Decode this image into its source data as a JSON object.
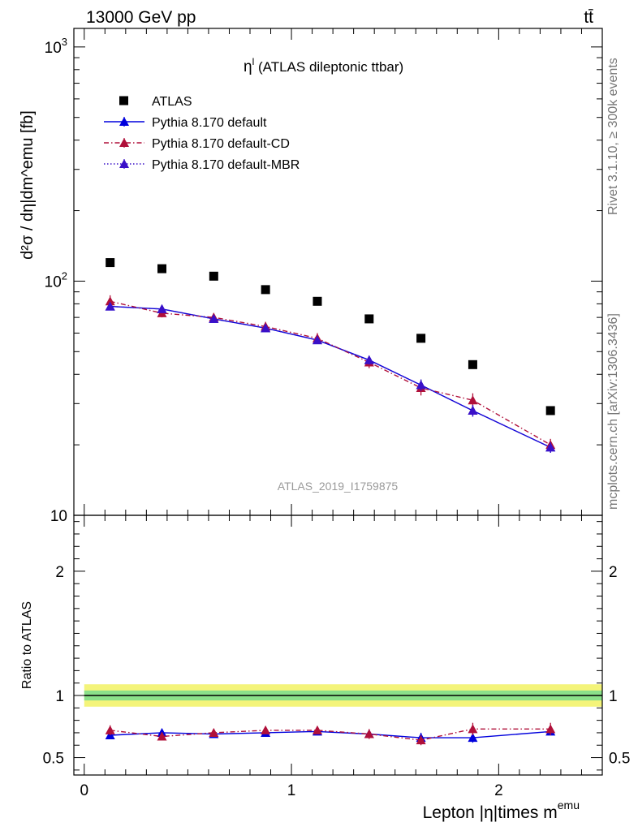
{
  "header": {
    "left": "13000 GeV pp",
    "right": "tt̄"
  },
  "side_labels": {
    "rivet": "Rivet 3.1.10, ≥ 300k events",
    "mcplots": "mcplots.cern.ch [arXiv:1306.3436]"
  },
  "watermark": "ATLAS_2019_I1759875",
  "chart_data": [
    {
      "type": "scatter",
      "panel": "main",
      "title_main": "η",
      "title_sup": "l",
      "title_rest": " (ATLAS dileptonic ttbar)",
      "ylabel": "d²σ / dη|dm^emu [fb]",
      "yscale": "log",
      "ylim": [
        10,
        1200
      ],
      "xlim": [
        -0.05,
        2.5
      ],
      "y_ticks": [
        {
          "value": 1000,
          "base": "10",
          "exp": "3"
        },
        {
          "value": 100,
          "base": "10",
          "exp": "2"
        },
        {
          "value": 10,
          "base": "10",
          "exp": ""
        }
      ],
      "legend_position": "top-left",
      "x": [
        0.125,
        0.375,
        0.625,
        0.875,
        1.125,
        1.375,
        1.625,
        1.875,
        2.25
      ],
      "series": [
        {
          "name": "ATLAS",
          "color": "#000000",
          "marker": "square",
          "line": "none",
          "values": [
            120,
            113,
            105,
            92,
            82,
            69,
            57,
            44,
            28
          ]
        },
        {
          "name": "Pythia 8.170 default",
          "color": "#0000dd",
          "marker": "triangle",
          "line": "solid",
          "values": [
            78,
            76,
            69,
            63,
            56,
            46,
            36,
            28,
            19.5
          ],
          "errors": [
            2,
            3,
            2,
            2,
            2,
            2,
            2,
            1.6,
            1
          ]
        },
        {
          "name": "Pythia 8.170 default-CD",
          "color": "#b0103a",
          "marker": "triangle",
          "line": "dashdot",
          "values": [
            82,
            73,
            70,
            64,
            57,
            45,
            35,
            31,
            20
          ],
          "errors": [
            5,
            3,
            3,
            3,
            3,
            2.5,
            2.5,
            2.2,
            1.2
          ]
        },
        {
          "name": "Pythia 8.170 default-MBR",
          "color": "#3a10c8",
          "marker": "triangle",
          "line": "dotted",
          "values": [
            78,
            76,
            69,
            63,
            56,
            46,
            36,
            28,
            19.5
          ],
          "errors": [
            2,
            3,
            2,
            2,
            2,
            2,
            2,
            1.6,
            1
          ]
        }
      ]
    },
    {
      "type": "line",
      "panel": "ratio",
      "ylabel": "Ratio to ATLAS",
      "xlabel_main": "Lepton |η|times m",
      "xlabel_sup": "emu",
      "ylim": [
        0.36,
        2.45
      ],
      "y_ticks": [
        0.5,
        1,
        2
      ],
      "y_tick_labels": [
        "0.5",
        "1",
        "2"
      ],
      "x_ticks": [
        0,
        1,
        2
      ],
      "x_tick_labels": [
        "0",
        "1",
        "2"
      ],
      "band_inner": 0.04,
      "band_outer": 0.09,
      "band_colors": {
        "inner": "#8ae08a",
        "outer": "#f4f47a"
      },
      "x": [
        0.125,
        0.375,
        0.625,
        0.875,
        1.125,
        1.375,
        1.625,
        1.875,
        2.25
      ],
      "series": [
        {
          "name": "Pythia 8.170 default",
          "color": "#0000dd",
          "line": "solid",
          "values": [
            0.68,
            0.7,
            0.69,
            0.7,
            0.71,
            0.69,
            0.66,
            0.66,
            0.71
          ],
          "errors": [
            0.02,
            0.03,
            0.02,
            0.03,
            0.03,
            0.03,
            0.04,
            0.04,
            0.03
          ]
        },
        {
          "name": "Pythia 8.170 default-CD",
          "color": "#b0103a",
          "line": "dashdot",
          "values": [
            0.72,
            0.67,
            0.7,
            0.72,
            0.72,
            0.69,
            0.64,
            0.73,
            0.73
          ],
          "errors": [
            0.04,
            0.03,
            0.03,
            0.03,
            0.03,
            0.04,
            0.04,
            0.05,
            0.05
          ]
        }
      ]
    }
  ]
}
